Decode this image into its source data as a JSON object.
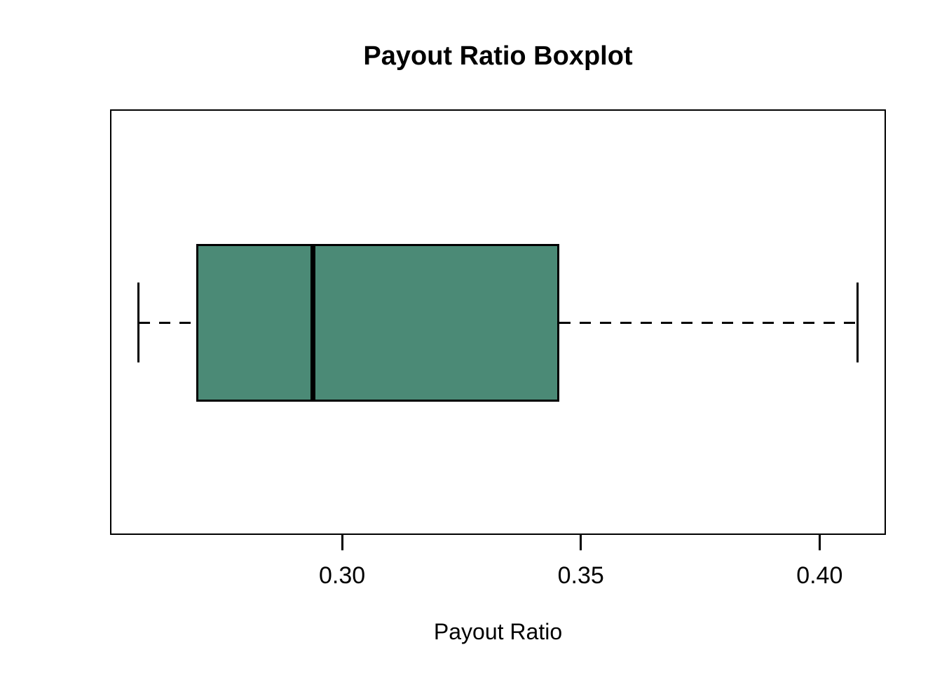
{
  "chart_data": {
    "type": "boxplot",
    "orientation": "horizontal",
    "title": "Payout Ratio Boxplot",
    "xlabel": "Payout Ratio",
    "ylabel": "",
    "series": [
      {
        "name": "Payout Ratio",
        "min": 0.2574,
        "q1": 0.2694,
        "median": 0.2939,
        "q3": 0.3455,
        "max": 0.4079,
        "outliers": []
      }
    ],
    "xlim": [
      0.2514,
      0.4139
    ],
    "x_ticks": [
      0.3,
      0.35,
      0.4
    ],
    "x_tick_labels": [
      "0.30",
      "0.35",
      "0.40"
    ],
    "grid": false,
    "legend": "none",
    "colors": {
      "box_fill": "#4B8A76",
      "line": "#000000",
      "background": "#FFFFFF",
      "text": "#000000"
    }
  }
}
